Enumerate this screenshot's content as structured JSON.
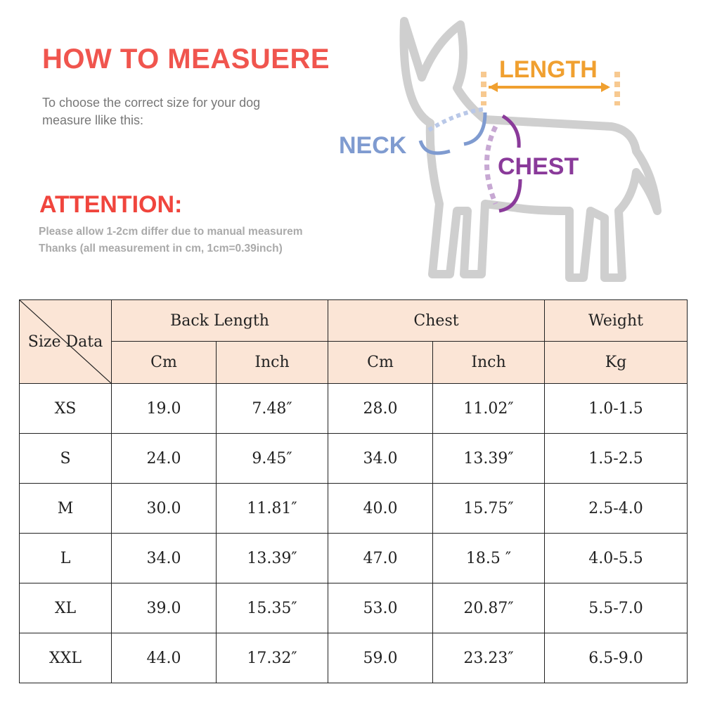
{
  "header": {
    "title": "HOW TO MEASUERE",
    "intro_line1": "To choose the correct size for your dog",
    "intro_line2": "measure llike this:"
  },
  "attention": {
    "title": "ATTENTION:",
    "line1": "Please allow 1-2cm differ due to manual measurem",
    "line2": "Thanks (all measurement in cm, 1cm=0.39inch)"
  },
  "diagram": {
    "length": "LENGTH",
    "neck": "NECK",
    "chest": "CHEST",
    "colors": {
      "length": "#f0a030",
      "neck": "#7f9bd0",
      "chest": "#8a3a9a"
    }
  },
  "table": {
    "corner": "Size Data",
    "groups": [
      "Back Length",
      "Chest",
      "Weight"
    ],
    "units": [
      "Cm",
      "Inch",
      "Cm",
      "Inch",
      "Kg"
    ],
    "rows": [
      [
        "XS",
        "19.0",
        "7.48″",
        "28.0",
        "11.02″",
        "1.0-1.5"
      ],
      [
        "S",
        "24.0",
        "9.45″",
        "34.0",
        "13.39″",
        "1.5-2.5"
      ],
      [
        "M",
        "30.0",
        "11.81″",
        "40.0",
        "15.75″",
        "2.5-4.0"
      ],
      [
        "L",
        "34.0",
        "13.39″",
        "47.0",
        "18.5 ″",
        "4.0-5.5"
      ],
      [
        "XL",
        "39.0",
        "15.35″",
        "53.0",
        "20.87″",
        "5.5-7.0"
      ],
      [
        "XXL",
        "44.0",
        "17.32″",
        "59.0",
        "23.23″",
        "6.5-9.0"
      ]
    ],
    "header_color": "#fbe5d6"
  }
}
